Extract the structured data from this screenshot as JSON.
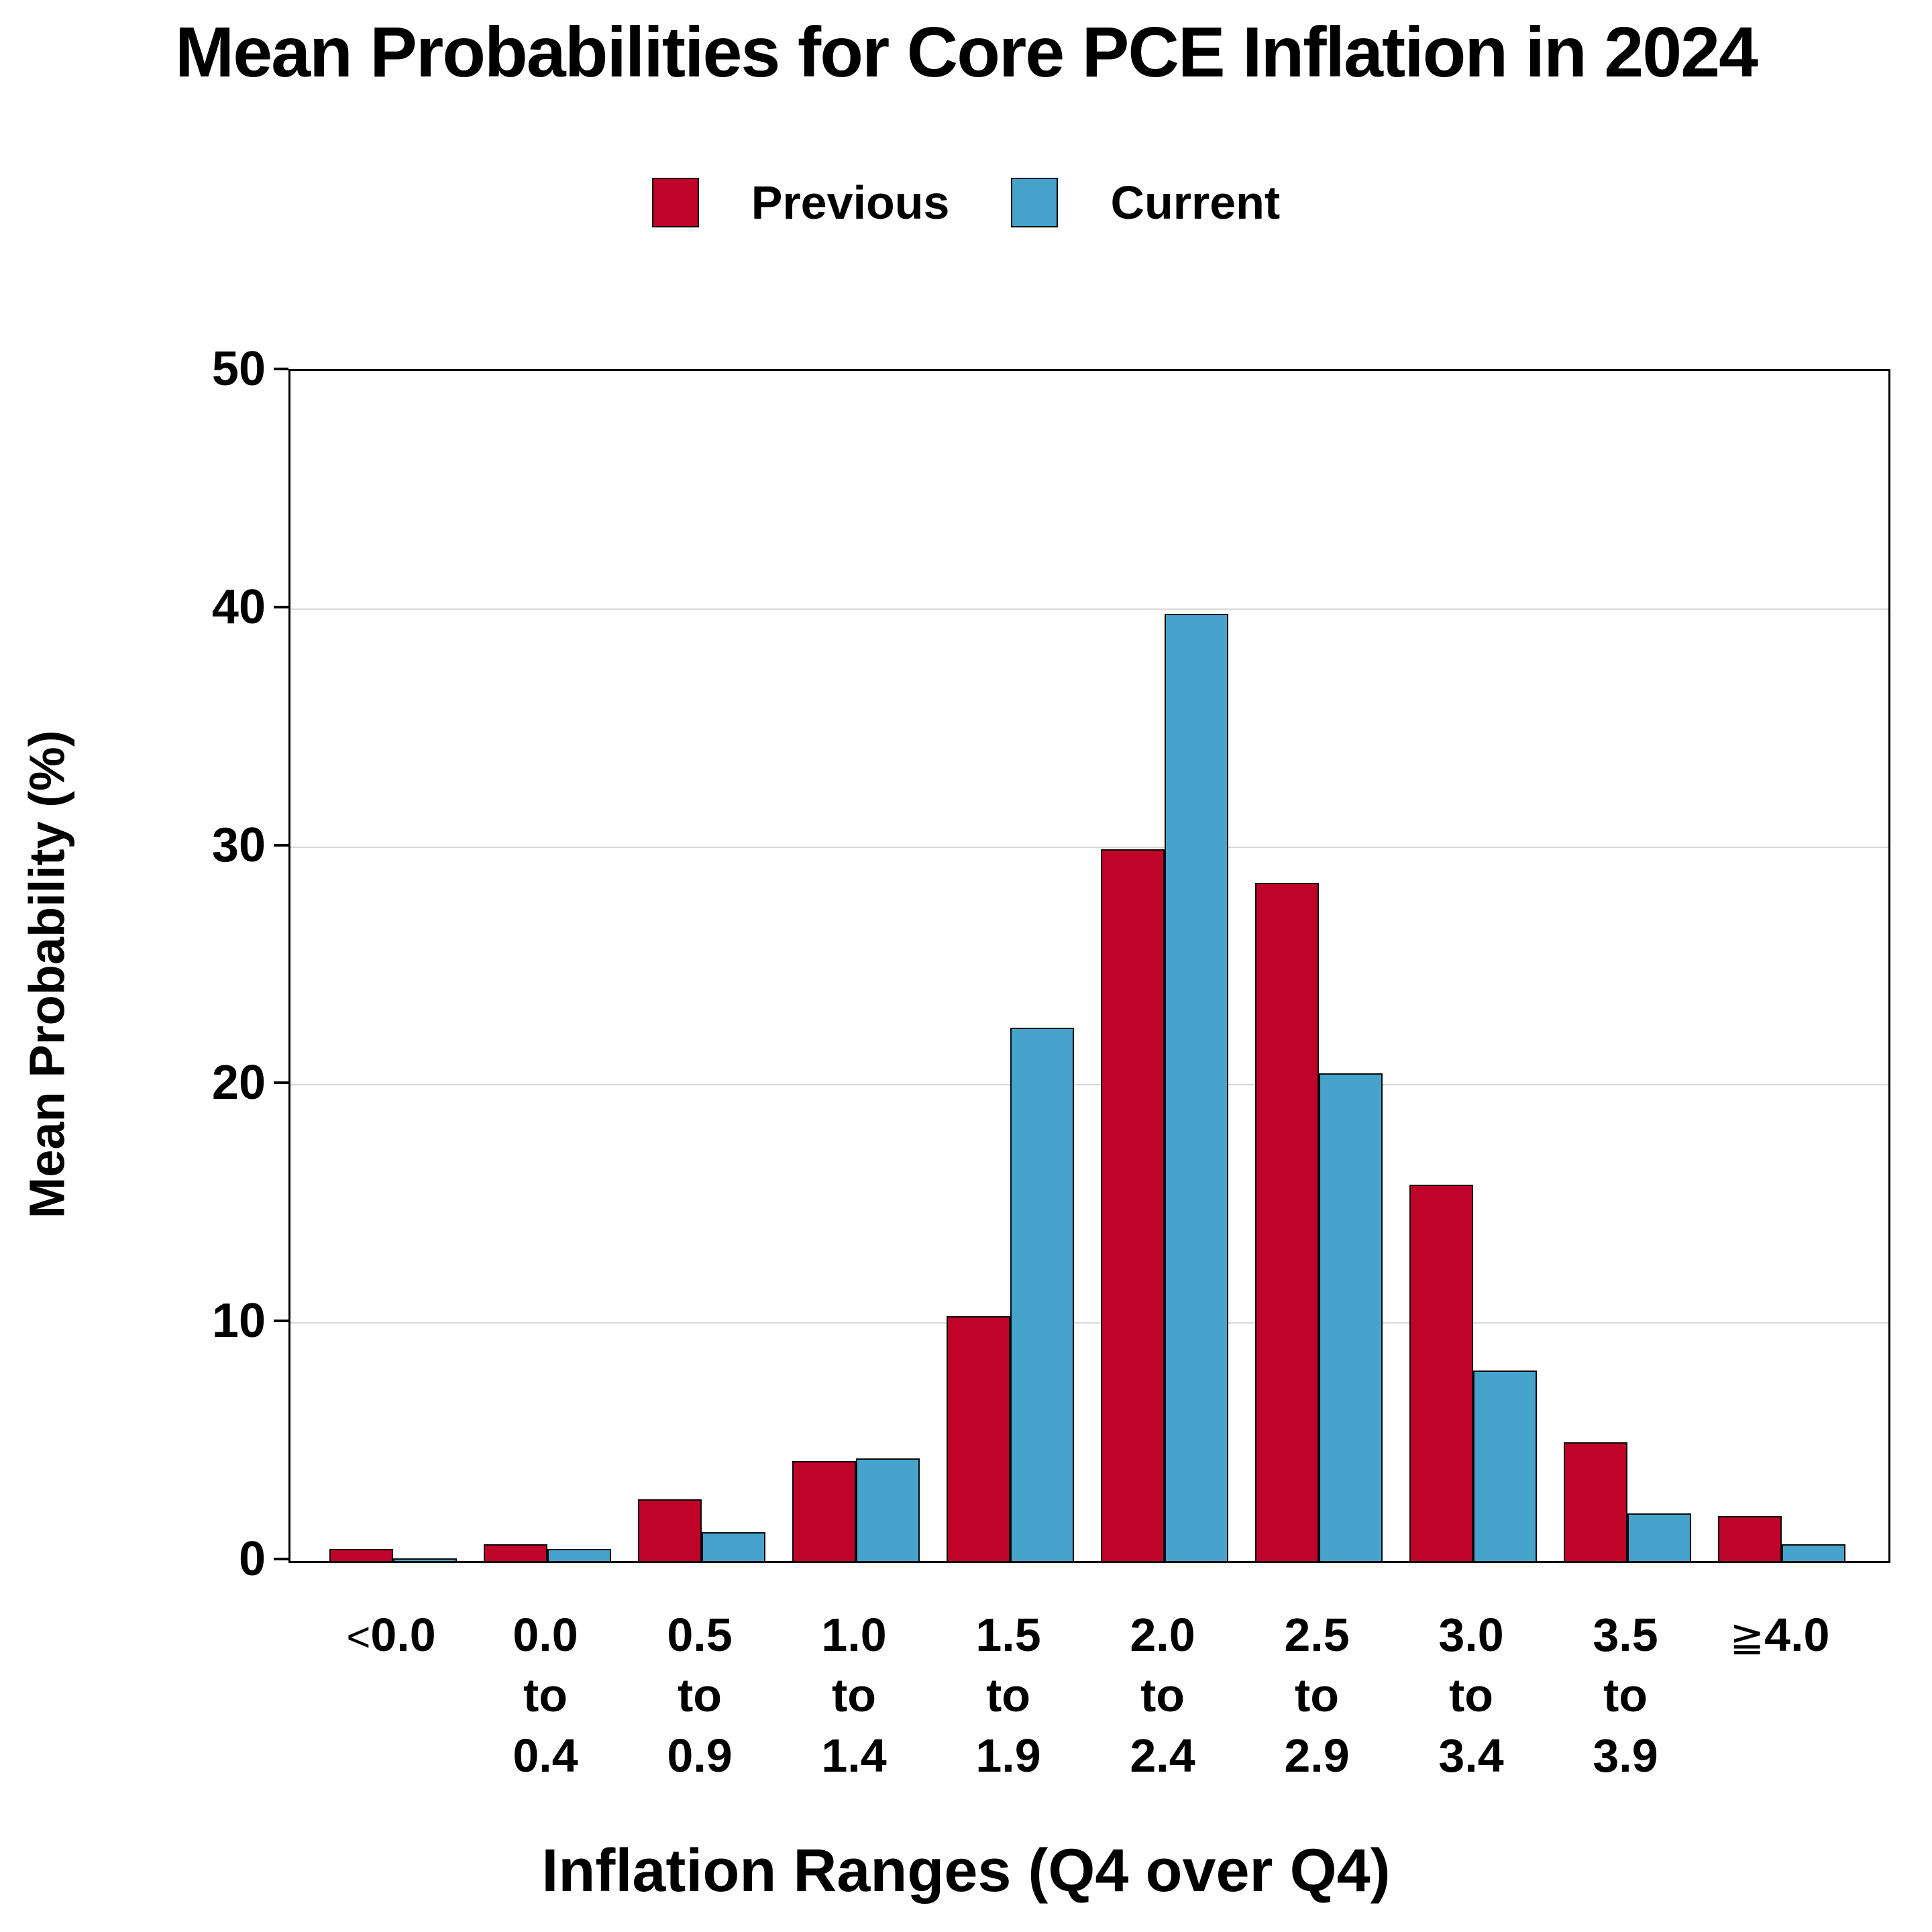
{
  "chart_data": {
    "type": "bar",
    "title": "Mean Probabilities for Core PCE Inflation in 2024",
    "xlabel": "Inflation Ranges (Q4 over Q4)",
    "ylabel": "Mean Probability (%)",
    "ylim": [
      0,
      50
    ],
    "yticks": [
      0,
      10,
      20,
      30,
      40,
      50
    ],
    "grid": "horizontal gridlines at 10, 20, 30, 40",
    "legend_position": "top-center",
    "frame": "full black frame around plot area",
    "categories": [
      "<0.0",
      "0.0 to 0.4",
      "0.5 to 0.9",
      "1.0 to 1.4",
      "1.5 to 1.9",
      "2.0 to 2.4",
      "2.5 to 2.9",
      "3.0 to 3.4",
      "3.5 to 3.9",
      "≧4.0"
    ],
    "category_label_lines": [
      [
        "<0.0"
      ],
      [
        "0.0",
        "to",
        "0.4"
      ],
      [
        "0.5",
        "to",
        "0.9"
      ],
      [
        "1.0",
        "to",
        "1.4"
      ],
      [
        "1.5",
        "to",
        "1.9"
      ],
      [
        "2.0",
        "to",
        "2.4"
      ],
      [
        "2.5",
        "to",
        "2.9"
      ],
      [
        "3.0",
        "to",
        "3.4"
      ],
      [
        "3.5",
        "to",
        "3.9"
      ],
      [
        "≧4.0"
      ]
    ],
    "series": [
      {
        "name": "Previous",
        "color": "#C00429",
        "values": [
          0.5,
          0.7,
          2.6,
          4.2,
          10.3,
          29.9,
          28.5,
          15.8,
          5.0,
          1.9
        ]
      },
      {
        "name": "Current",
        "color": "#46A3CC",
        "values": [
          0.1,
          0.5,
          1.2,
          4.3,
          22.4,
          39.8,
          20.5,
          8.0,
          2.0,
          0.7
        ]
      }
    ],
    "colors": {
      "axis_frame": "#000000",
      "gridline": "#D9D9D9",
      "bar_outline": "#0a0a0a",
      "background": "#ffffff"
    }
  }
}
